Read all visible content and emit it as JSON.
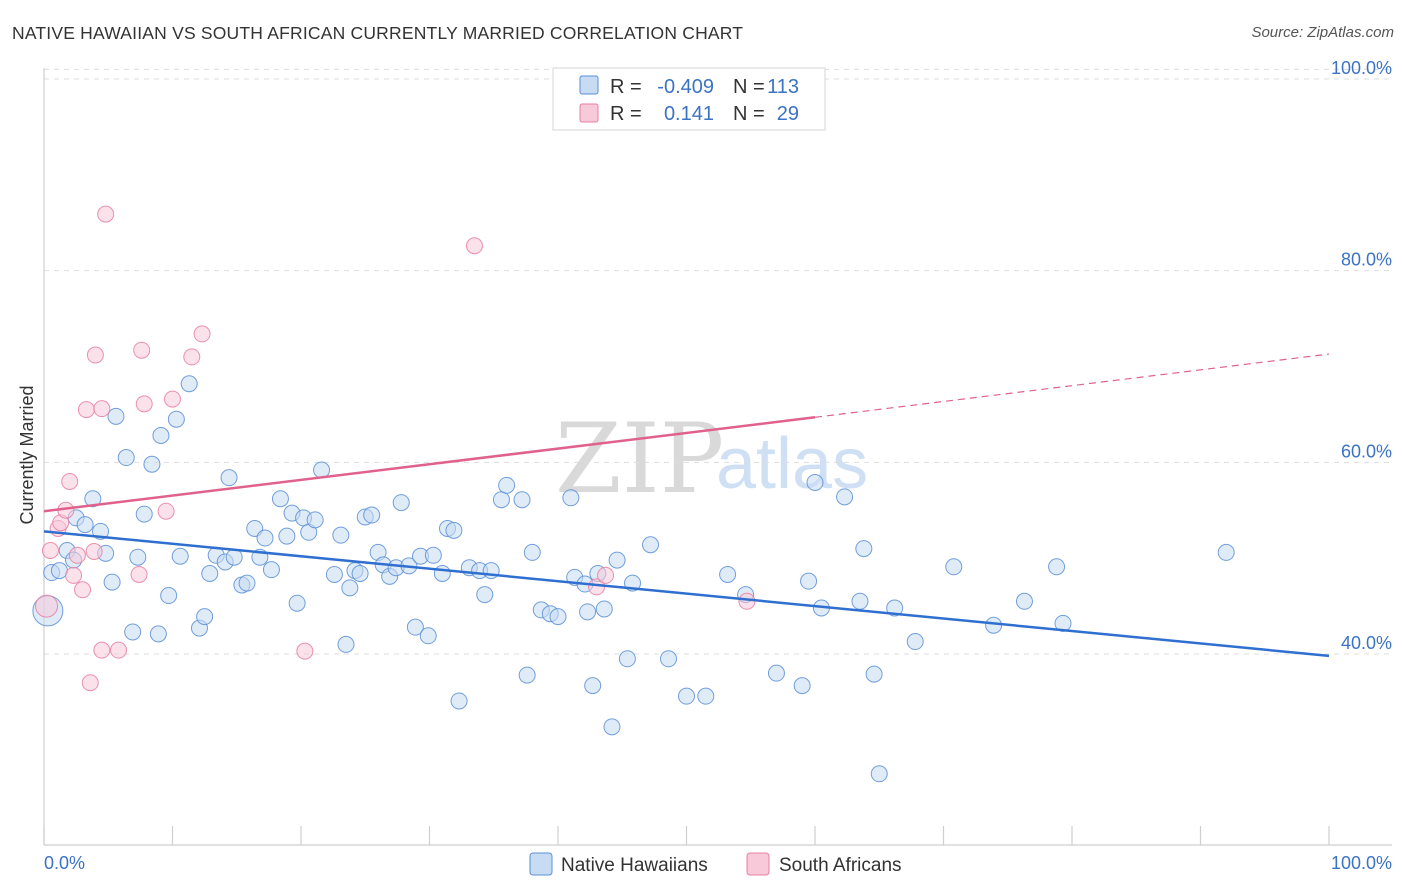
{
  "header": {
    "title": "NATIVE HAWAIIAN VS SOUTH AFRICAN CURRENTLY MARRIED CORRELATION CHART",
    "source": "Source: ZipAtlas.com"
  },
  "watermark": {
    "zip": "ZIP",
    "atlas": "atlas"
  },
  "stats_legend": {
    "rows": [
      {
        "r_label": "R =",
        "r_value": "-0.409",
        "n_label": "N =",
        "n_value": "113",
        "color": "#5b8fd6"
      },
      {
        "r_label": "R =",
        "r_value": "0.141",
        "n_label": "N =",
        "n_value": "29",
        "color": "#e87fa1"
      }
    ]
  },
  "chart_data": {
    "type": "scatter",
    "xlabel": "",
    "ylabel": "Currently Married",
    "xlim": [
      0,
      100
    ],
    "ylim": [
      20,
      102
    ],
    "x_tick_labels": [
      {
        "value": 0,
        "label": "0.0%"
      },
      {
        "value": 100,
        "label": "100.0%"
      }
    ],
    "y_ticks": [
      {
        "value": 40,
        "label": "40.0%"
      },
      {
        "value": 60,
        "label": "60.0%"
      },
      {
        "value": 80,
        "label": "80.0%"
      },
      {
        "value": 100,
        "label": "100.0%"
      }
    ],
    "grid": "horizontal dashed",
    "legend_position": "bottom-center",
    "series": [
      {
        "name": "Native Hawaiians",
        "color": "#5b8fd6",
        "fill": "#c7dbf3",
        "trend": {
          "x0": 0,
          "y0": 52.8,
          "x1": 100,
          "y1": 39.8
        },
        "points": [
          [
            0.3,
            44.5
          ],
          [
            0.6,
            48.5
          ],
          [
            1.2,
            48.7
          ],
          [
            1.8,
            50.8
          ],
          [
            2.3,
            49.8
          ],
          [
            2.5,
            54.2
          ],
          [
            3.2,
            53.5
          ],
          [
            3.8,
            56.2
          ],
          [
            4.4,
            52.8
          ],
          [
            4.8,
            50.5
          ],
          [
            5.3,
            47.5
          ],
          [
            5.6,
            64.8
          ],
          [
            6.4,
            60.5
          ],
          [
            6.9,
            42.3
          ],
          [
            7.3,
            50.1
          ],
          [
            7.8,
            54.6
          ],
          [
            8.4,
            59.8
          ],
          [
            8.9,
            42.1
          ],
          [
            9.1,
            62.8
          ],
          [
            9.7,
            46.1
          ],
          [
            10.3,
            64.5
          ],
          [
            10.6,
            50.2
          ],
          [
            11.3,
            68.2
          ],
          [
            12.1,
            42.7
          ],
          [
            12.5,
            43.9
          ],
          [
            12.9,
            48.4
          ],
          [
            13.4,
            50.3
          ],
          [
            14.1,
            49.6
          ],
          [
            14.4,
            58.4
          ],
          [
            14.8,
            50.1
          ],
          [
            15.4,
            47.2
          ],
          [
            15.8,
            47.4
          ],
          [
            16.4,
            53.1
          ],
          [
            16.8,
            50.1
          ],
          [
            17.2,
            52.1
          ],
          [
            17.7,
            48.8
          ],
          [
            18.4,
            56.2
          ],
          [
            18.9,
            52.3
          ],
          [
            19.3,
            54.7
          ],
          [
            19.7,
            45.3
          ],
          [
            20.2,
            54.2
          ],
          [
            20.6,
            52.7
          ],
          [
            21.1,
            54.0
          ],
          [
            21.6,
            59.2
          ],
          [
            22.6,
            48.3
          ],
          [
            23.1,
            52.4
          ],
          [
            23.5,
            41.0
          ],
          [
            23.8,
            46.9
          ],
          [
            24.2,
            48.7
          ],
          [
            24.6,
            48.4
          ],
          [
            25.0,
            54.3
          ],
          [
            25.5,
            54.5
          ],
          [
            26.0,
            50.6
          ],
          [
            26.4,
            49.3
          ],
          [
            26.9,
            48.1
          ],
          [
            27.4,
            49.0
          ],
          [
            27.8,
            55.8
          ],
          [
            28.4,
            49.2
          ],
          [
            28.9,
            42.8
          ],
          [
            29.3,
            50.2
          ],
          [
            29.9,
            41.9
          ],
          [
            30.3,
            50.3
          ],
          [
            31.0,
            48.4
          ],
          [
            31.4,
            53.1
          ],
          [
            31.9,
            52.9
          ],
          [
            32.3,
            35.1
          ],
          [
            33.1,
            49.0
          ],
          [
            33.9,
            48.7
          ],
          [
            34.3,
            46.2
          ],
          [
            34.8,
            48.7
          ],
          [
            35.6,
            56.1
          ],
          [
            36.0,
            57.6
          ],
          [
            37.2,
            56.1
          ],
          [
            37.6,
            37.8
          ],
          [
            38.0,
            50.6
          ],
          [
            38.7,
            44.6
          ],
          [
            39.4,
            44.2
          ],
          [
            40.0,
            43.9
          ],
          [
            41.0,
            56.3
          ],
          [
            41.3,
            48.0
          ],
          [
            42.1,
            47.3
          ],
          [
            42.3,
            44.4
          ],
          [
            42.7,
            36.7
          ],
          [
            43.1,
            48.4
          ],
          [
            43.6,
            44.7
          ],
          [
            44.2,
            32.4
          ],
          [
            44.6,
            49.8
          ],
          [
            45.4,
            39.5
          ],
          [
            45.8,
            47.4
          ],
          [
            47.2,
            51.4
          ],
          [
            48.6,
            39.5
          ],
          [
            50.0,
            35.6
          ],
          [
            51.5,
            35.6
          ],
          [
            53.2,
            48.3
          ],
          [
            54.6,
            46.2
          ],
          [
            57.0,
            38.0
          ],
          [
            59.0,
            36.7
          ],
          [
            59.5,
            47.6
          ],
          [
            60.0,
            57.9
          ],
          [
            60.5,
            44.8
          ],
          [
            62.3,
            56.4
          ],
          [
            63.5,
            45.5
          ],
          [
            63.8,
            51.0
          ],
          [
            64.6,
            37.9
          ],
          [
            65.0,
            27.5
          ],
          [
            66.2,
            44.8
          ],
          [
            67.8,
            41.3
          ],
          [
            70.8,
            49.1
          ],
          [
            73.9,
            43.0
          ],
          [
            76.3,
            45.5
          ],
          [
            78.8,
            49.1
          ],
          [
            79.3,
            43.2
          ],
          [
            92.0,
            50.6
          ]
        ]
      },
      {
        "name": "South Africans",
        "color": "#e87fa1",
        "fill": "#f8c9d8",
        "trend": {
          "x0": 0,
          "y0": 54.9,
          "x1": 60,
          "y1": 64.7,
          "dash_x1": 100,
          "dash_y1": 71.3
        },
        "points": [
          [
            0.2,
            45.0
          ],
          [
            0.5,
            50.8
          ],
          [
            1.1,
            53.1
          ],
          [
            1.3,
            53.7
          ],
          [
            1.7,
            55.0
          ],
          [
            2.0,
            58.0
          ],
          [
            2.3,
            48.2
          ],
          [
            2.6,
            50.3
          ],
          [
            3.0,
            46.7
          ],
          [
            3.3,
            65.5
          ],
          [
            3.6,
            37.0
          ],
          [
            3.9,
            50.7
          ],
          [
            4.0,
            71.2
          ],
          [
            4.5,
            40.4
          ],
          [
            4.5,
            65.6
          ],
          [
            4.8,
            85.9
          ],
          [
            5.8,
            40.4
          ],
          [
            7.4,
            48.3
          ],
          [
            7.6,
            71.7
          ],
          [
            7.8,
            66.1
          ],
          [
            9.5,
            54.9
          ],
          [
            10.0,
            66.6
          ],
          [
            11.5,
            71.0
          ],
          [
            12.3,
            73.4
          ],
          [
            20.3,
            40.3
          ],
          [
            33.5,
            82.6
          ],
          [
            43.0,
            47.0
          ],
          [
            43.7,
            48.2
          ],
          [
            54.7,
            45.5
          ]
        ]
      }
    ]
  }
}
